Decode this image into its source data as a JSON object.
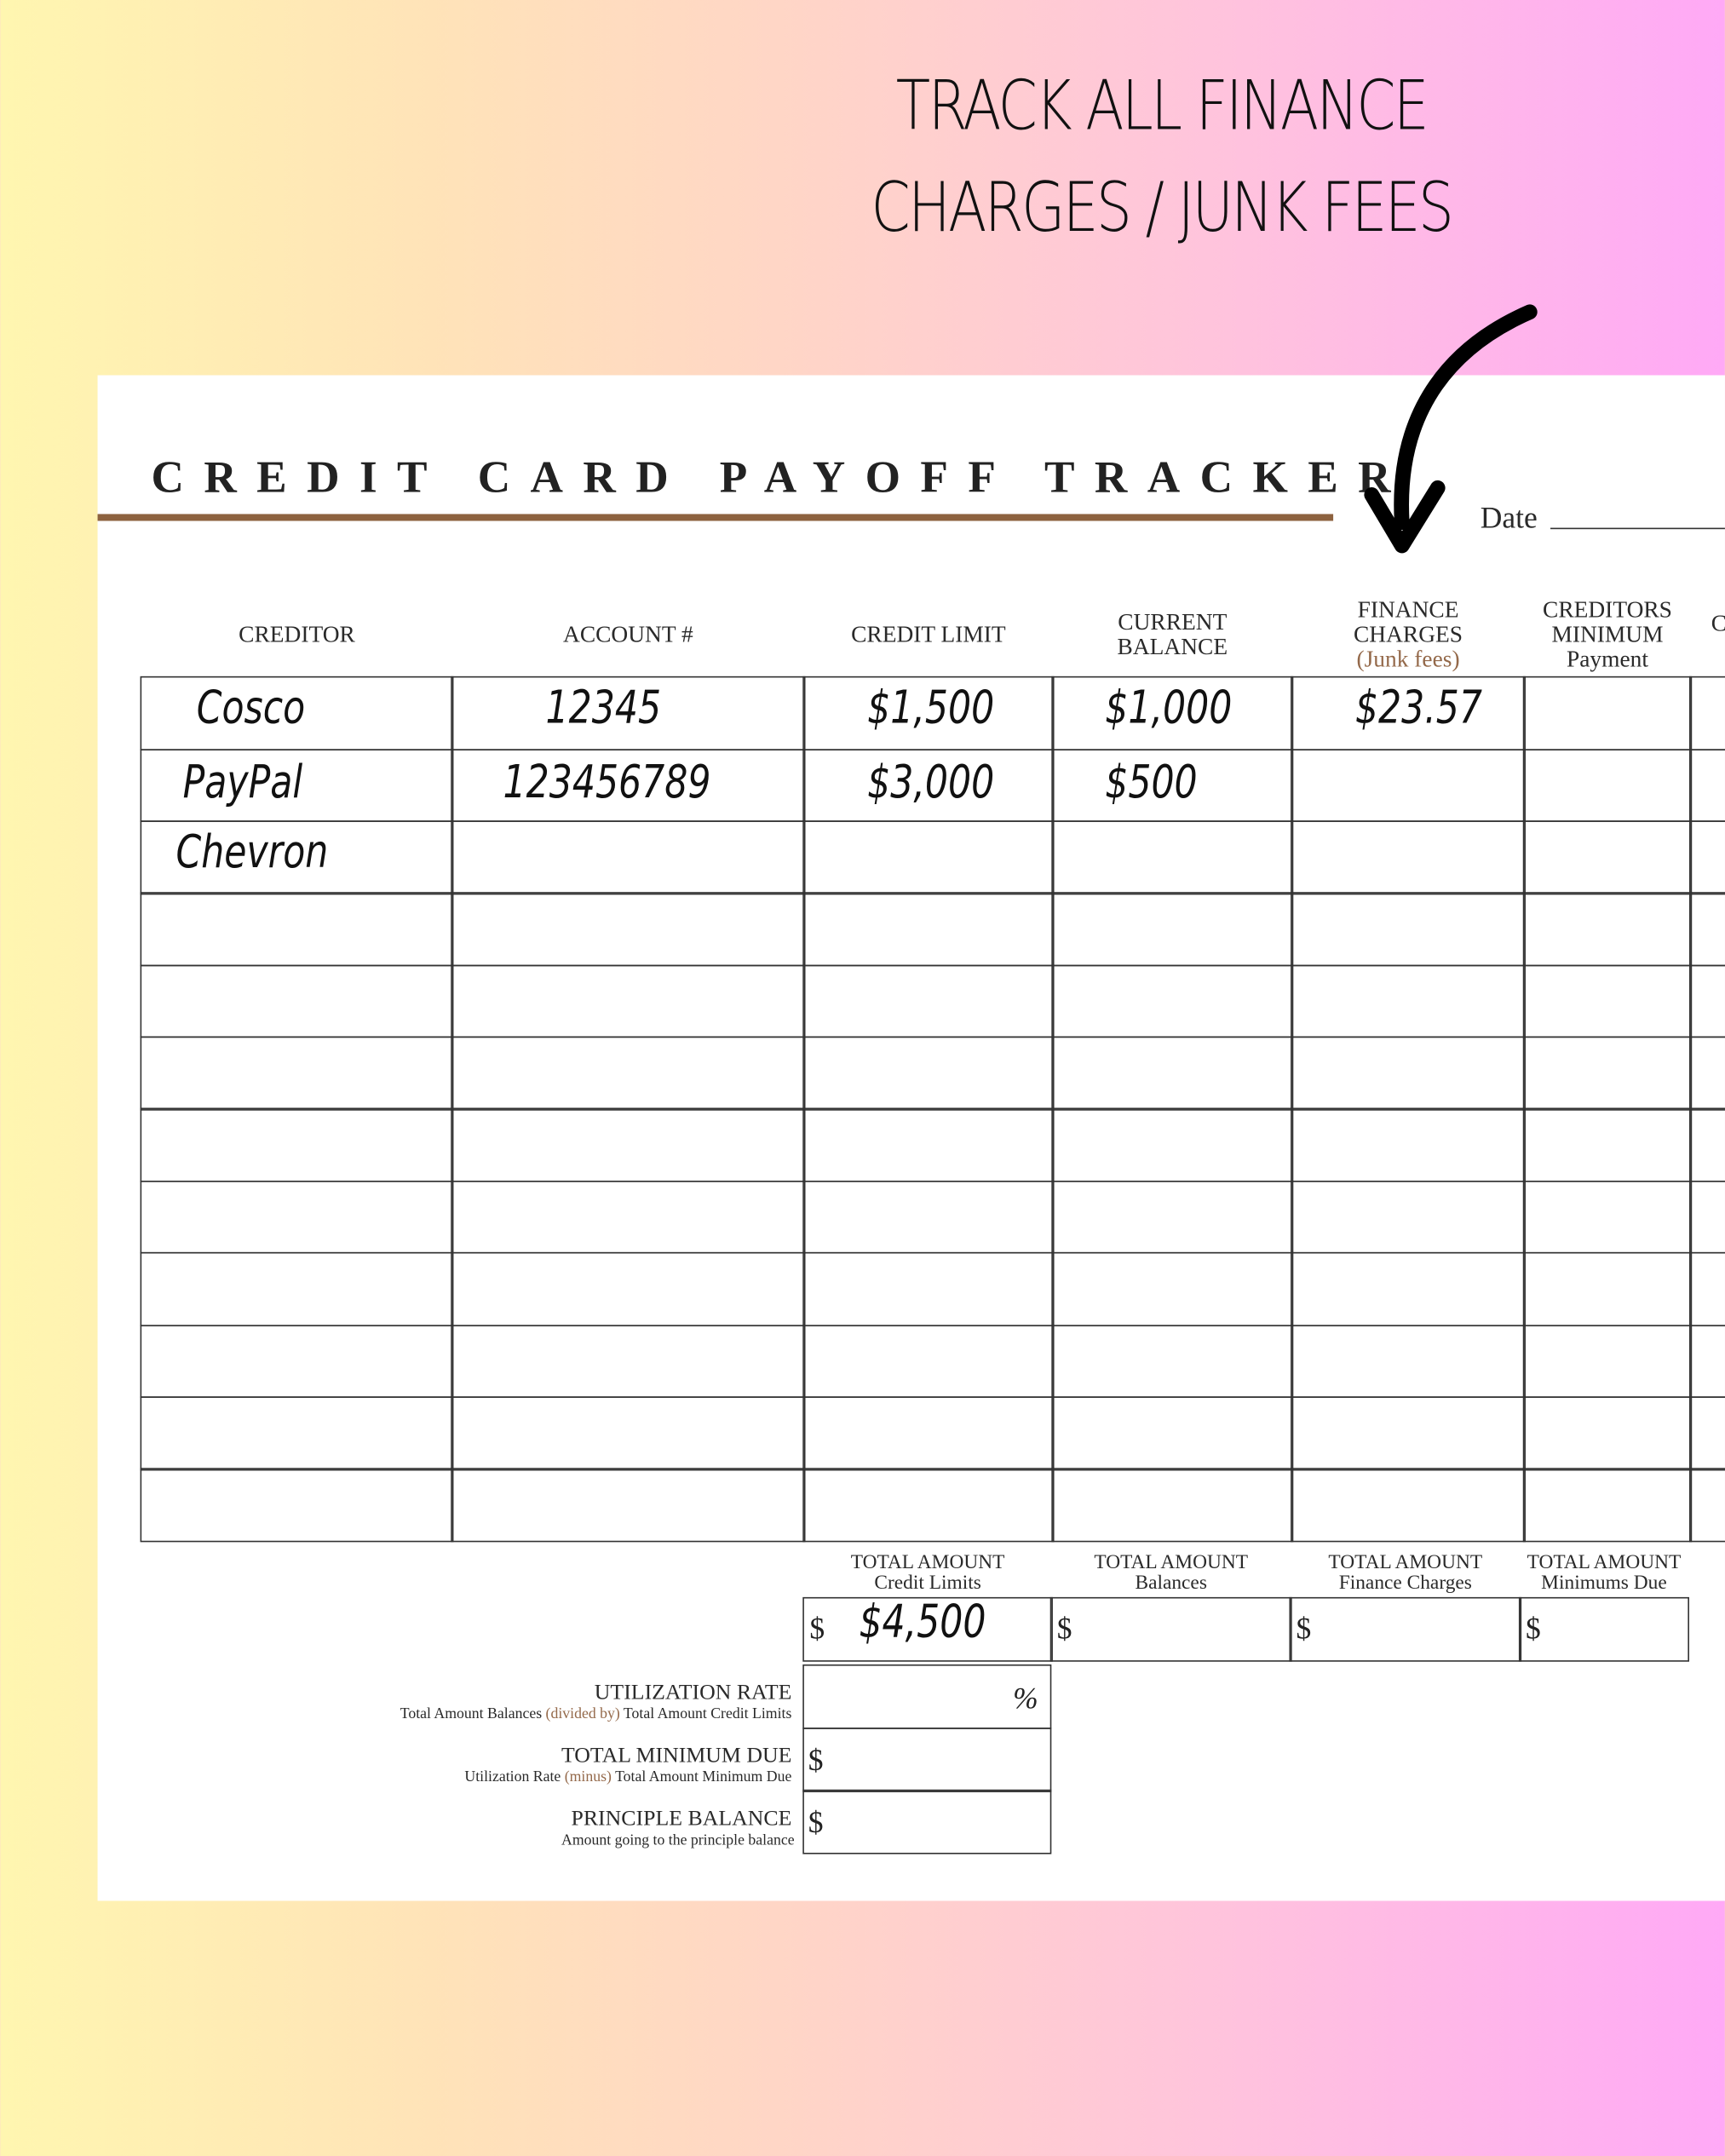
{
  "promo": {
    "line1": "TRACK ALL FINANCE",
    "line2": "CHARGES / JUNK FEES",
    "arrow_icon": "curved-arrow-down-icon"
  },
  "tracker": {
    "title": "CREDIT CARD PAYOFF TRACKER",
    "date_label": "Date",
    "accent_color": "#8d623f",
    "headers": [
      {
        "lines": [
          "CREDITOR"
        ]
      },
      {
        "lines": [
          "ACCOUNT #"
        ]
      },
      {
        "lines": [
          "CREDIT LIMIT"
        ]
      },
      {
        "lines": [
          "CURRENT",
          "BALANCE"
        ]
      },
      {
        "lines": [
          "FINANCE",
          "CHARGES"
        ],
        "note": "(Junk fees)"
      },
      {
        "lines": [
          "CREDITORS",
          "MINIMUM",
          "Payment"
        ]
      },
      {
        "lines": [
          "C"
        ]
      }
    ],
    "rows": [
      [
        "Cosco",
        "12345",
        "$1,500",
        "$1,000",
        "$23.57",
        "",
        ""
      ],
      [
        "PayPal",
        "123456789",
        "$3,000",
        "$500",
        "",
        "",
        ""
      ],
      [
        "Chevron",
        "",
        "",
        "",
        "",
        "",
        ""
      ],
      [
        "",
        "",
        "",
        "",
        "",
        "",
        ""
      ],
      [
        "",
        "",
        "",
        "",
        "",
        "",
        ""
      ],
      [
        "",
        "",
        "",
        "",
        "",
        "",
        ""
      ],
      [
        "",
        "",
        "",
        "",
        "",
        "",
        ""
      ],
      [
        "",
        "",
        "",
        "",
        "",
        "",
        ""
      ],
      [
        "",
        "",
        "",
        "",
        "",
        "",
        ""
      ],
      [
        "",
        "",
        "",
        "",
        "",
        "",
        ""
      ],
      [
        "",
        "",
        "",
        "",
        "",
        "",
        ""
      ],
      [
        "",
        "",
        "",
        "",
        "",
        "",
        ""
      ]
    ],
    "totals": [
      {
        "title": "TOTAL AMOUNT",
        "sub": "Credit Limits",
        "prefix": "$",
        "value": "$4,500"
      },
      {
        "title": "TOTAL AMOUNT",
        "sub": "Balances",
        "prefix": "$",
        "value": ""
      },
      {
        "title": "TOTAL AMOUNT",
        "sub": "Finance Charges",
        "prefix": "$",
        "value": ""
      },
      {
        "title": "TOTAL AMOUNT",
        "sub": "Minimums Due",
        "prefix": "$",
        "value": ""
      }
    ],
    "summary": [
      {
        "title": "UTILIZATION RATE",
        "sub_a": "Total Amount Balances ",
        "sub_op": "(divided by)",
        "sub_b": " Total Amount Credit Limits",
        "prefix": "",
        "suffix": "%"
      },
      {
        "title": "TOTAL MINIMUM DUE",
        "sub_a": "Utilization Rate ",
        "sub_op": "(minus)",
        "sub_b": " Total Amount Minimum Due",
        "prefix": "$",
        "suffix": ""
      },
      {
        "title": "PRINCIPLE BALANCE",
        "sub_a": "Amount going to the principle balance",
        "sub_op": "",
        "sub_b": "",
        "prefix": "$",
        "suffix": ""
      }
    ]
  }
}
